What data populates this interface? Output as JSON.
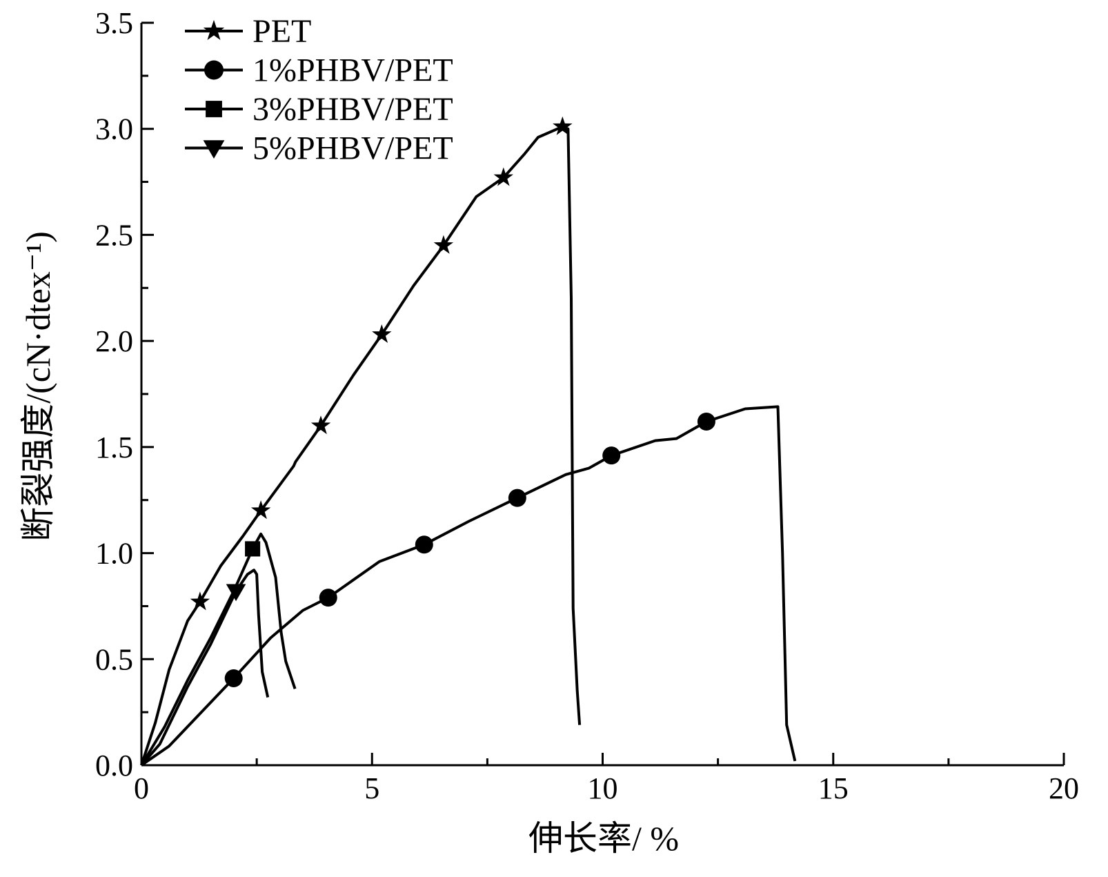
{
  "chart_data": {
    "type": "line",
    "title": "",
    "xlabel": "伸长率/ %",
    "ylabel": "断裂强度/(cN·dtex⁻¹)",
    "xlim": [
      0,
      20
    ],
    "ylim": [
      0,
      3.5
    ],
    "grid": false,
    "legend_position": "top-left",
    "x_ticks": [
      0,
      5,
      10,
      15,
      20
    ],
    "x_tick_labels": [
      "0",
      "5",
      "10",
      "15",
      "20"
    ],
    "y_ticks": [
      0,
      0.5,
      1.0,
      1.5,
      2.0,
      2.5,
      3.0,
      3.5
    ],
    "y_tick_labels": [
      "0.0",
      "0.5",
      "1.0",
      "1.5",
      "2.0",
      "2.5",
      "3.0",
      "3.5"
    ],
    "series": [
      {
        "name": "PET",
        "marker": "star",
        "points": [
          [
            0,
            0
          ],
          [
            0.3,
            0.2
          ],
          [
            0.6,
            0.45
          ],
          [
            1.0,
            0.68
          ],
          [
            1.27,
            0.77
          ],
          [
            1.72,
            0.94
          ],
          [
            2.2,
            1.08
          ],
          [
            2.59,
            1.2
          ],
          [
            3.3,
            1.41
          ],
          [
            3.34,
            1.43
          ],
          [
            3.89,
            1.6
          ],
          [
            4.6,
            1.84
          ],
          [
            5.21,
            2.03
          ],
          [
            5.9,
            2.26
          ],
          [
            6.55,
            2.45
          ],
          [
            7.26,
            2.68
          ],
          [
            7.85,
            2.77
          ],
          [
            8.3,
            2.88
          ],
          [
            8.6,
            2.96
          ],
          [
            9.13,
            3.01
          ],
          [
            9.25,
            3.0
          ],
          [
            9.32,
            2.2
          ],
          [
            9.36,
            0.74
          ],
          [
            9.45,
            0.35
          ],
          [
            9.5,
            0.19
          ]
        ],
        "marker_x": [
          1.27,
          2.59,
          3.89,
          5.21,
          6.55,
          7.85,
          9.13
        ]
      },
      {
        "name": "1%PHBV/PET",
        "marker": "circle",
        "points": [
          [
            0,
            0
          ],
          [
            0.6,
            0.09
          ],
          [
            1.3,
            0.25
          ],
          [
            2.0,
            0.41
          ],
          [
            2.8,
            0.6
          ],
          [
            3.5,
            0.73
          ],
          [
            4.05,
            0.79
          ],
          [
            5.16,
            0.96
          ],
          [
            6.13,
            1.04
          ],
          [
            7.1,
            1.15
          ],
          [
            8.15,
            1.26
          ],
          [
            9.2,
            1.37
          ],
          [
            9.7,
            1.4
          ],
          [
            10.19,
            1.46
          ],
          [
            11.14,
            1.53
          ],
          [
            11.6,
            1.54
          ],
          [
            12.25,
            1.62
          ],
          [
            13.09,
            1.68
          ],
          [
            13.8,
            1.69
          ],
          [
            13.9,
            1.0
          ],
          [
            13.99,
            0.19
          ],
          [
            14.17,
            0.02
          ]
        ],
        "marker_x": [
          2.0,
          4.05,
          6.13,
          8.15,
          10.19,
          12.25
        ]
      },
      {
        "name": "3%PHBV/PET",
        "marker": "square",
        "points": [
          [
            0,
            0
          ],
          [
            0.5,
            0.18
          ],
          [
            1.0,
            0.4
          ],
          [
            1.5,
            0.6
          ],
          [
            2.0,
            0.82
          ],
          [
            2.41,
            1.02
          ],
          [
            2.59,
            1.09
          ],
          [
            2.7,
            1.05
          ],
          [
            2.91,
            0.885
          ],
          [
            3.03,
            0.625
          ],
          [
            3.13,
            0.49
          ],
          [
            3.33,
            0.36
          ]
        ],
        "marker_x": [
          2.41
        ]
      },
      {
        "name": "5%PHBV/PET",
        "marker": "triangle-down",
        "points": [
          [
            0,
            0
          ],
          [
            0.4,
            0.1
          ],
          [
            1.0,
            0.37
          ],
          [
            1.5,
            0.57
          ],
          [
            2.05,
            0.82
          ],
          [
            2.3,
            0.9
          ],
          [
            2.44,
            0.92
          ],
          [
            2.5,
            0.9
          ],
          [
            2.54,
            0.71
          ],
          [
            2.62,
            0.44
          ],
          [
            2.74,
            0.32
          ]
        ],
        "marker_x": [
          2.05
        ]
      }
    ]
  }
}
